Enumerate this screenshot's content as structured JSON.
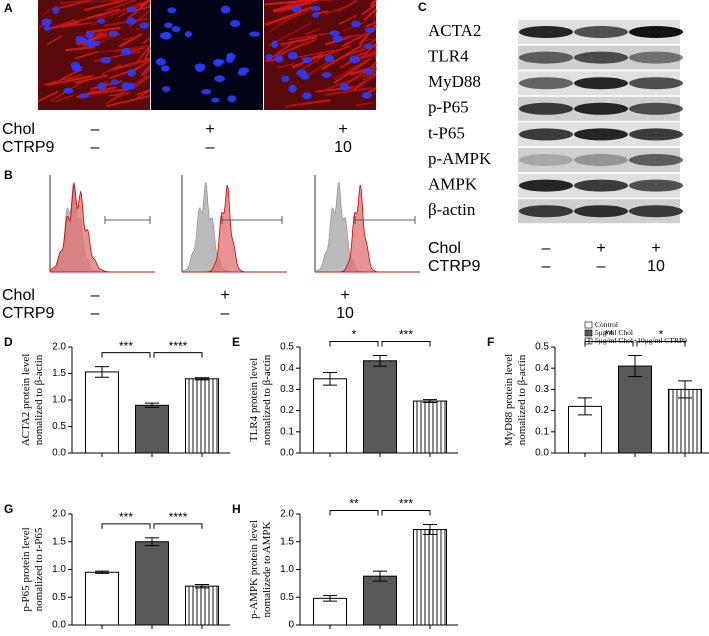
{
  "panelA": {
    "label": "A",
    "rows": [
      {
        "name": "Chol",
        "values": [
          "–",
          "+",
          "+"
        ]
      },
      {
        "name": "CTRP9",
        "values": [
          "–",
          "–",
          "10"
        ]
      }
    ]
  },
  "panelB": {
    "label": "B",
    "rows": [
      {
        "name": "Chol",
        "values": [
          "–",
          "+",
          "+"
        ]
      },
      {
        "name": "CTRP9",
        "values": [
          "–",
          "–",
          "10"
        ]
      }
    ]
  },
  "panelC": {
    "label": "C",
    "proteins": [
      "ACTA2",
      "TLR4",
      "MyD88",
      "p-P65",
      "t-P65",
      "p-AMPK",
      "AMPK",
      "β-actin"
    ],
    "rows": [
      {
        "name": "Chol",
        "values": [
          "–",
          "+",
          "+"
        ]
      },
      {
        "name": "CTRP9",
        "values": [
          "–",
          "–",
          "10"
        ]
      }
    ]
  },
  "legend": [
    "Control",
    "5μg/ml Chol",
    "5μg/ml Chol+10μg/ml CTRP9"
  ],
  "chart_data": [
    {
      "type": "bar",
      "panel": "D",
      "ylabel": [
        "ACTA2 protein level",
        "nomalized to β-actin"
      ],
      "values": [
        1.53,
        0.9,
        1.4
      ],
      "errors": [
        0.1,
        0.04,
        0.02
      ],
      "ylim": [
        0,
        2.0
      ],
      "yticks": [
        {
          "value": 0,
          "label": "0.0"
        },
        0.5,
        {
          "value": 1,
          "label": "1.0"
        },
        1.5,
        {
          "value": 2,
          "label": "2.0"
        }
      ],
      "significance": [
        "***",
        "****"
      ]
    },
    {
      "type": "bar",
      "panel": "E",
      "ylabel": [
        "TLR4 protein level",
        "nomalized to β-actin"
      ],
      "values": [
        0.35,
        0.435,
        0.245
      ],
      "errors": [
        0.03,
        0.025,
        0.007
      ],
      "ylim": [
        0,
        0.5
      ],
      "yticks": [
        {
          "value": 0,
          "label": "0.0"
        },
        0.1,
        0.2,
        0.3,
        0.4,
        0.5
      ],
      "significance": [
        "*",
        "***"
      ]
    },
    {
      "type": "bar",
      "panel": "F",
      "ylabel": [
        "MyD88 protein level",
        "nomalized to β-actin"
      ],
      "values": [
        0.22,
        0.41,
        0.3
      ],
      "errors": [
        0.04,
        0.05,
        0.04
      ],
      "ylim": [
        0,
        0.5
      ],
      "yticks": [
        {
          "value": 0,
          "label": "0.0"
        },
        0.1,
        0.2,
        0.3,
        0.4,
        0.5
      ],
      "significance": [
        "**",
        "*"
      ]
    },
    {
      "type": "bar",
      "panel": "G",
      "ylabel": [
        "p-P65 protein level",
        "nomalized to t-P65"
      ],
      "values": [
        0.95,
        1.5,
        0.7
      ],
      "errors": [
        0.02,
        0.07,
        0.03
      ],
      "ylim": [
        0,
        2.0
      ],
      "yticks": [
        {
          "value": 0,
          "label": "0.0"
        },
        0.5,
        {
          "value": 1,
          "label": "1.0"
        },
        1.5,
        {
          "value": 2,
          "label": "2.0"
        }
      ],
      "significance": [
        "***",
        "****"
      ]
    },
    {
      "type": "bar",
      "panel": "H",
      "ylabel": [
        "p-AMPK protein level",
        "nomalizede to AMPK"
      ],
      "values": [
        0.48,
        0.88,
        1.72
      ],
      "errors": [
        0.05,
        0.09,
        0.09
      ],
      "ylim": [
        0,
        2.0
      ],
      "yticks": [
        0,
        0.5,
        {
          "value": 1,
          "label": "1.0"
        },
        1.5,
        {
          "value": 2,
          "label": "2.0"
        }
      ],
      "significance": [
        "**",
        "***"
      ]
    }
  ]
}
